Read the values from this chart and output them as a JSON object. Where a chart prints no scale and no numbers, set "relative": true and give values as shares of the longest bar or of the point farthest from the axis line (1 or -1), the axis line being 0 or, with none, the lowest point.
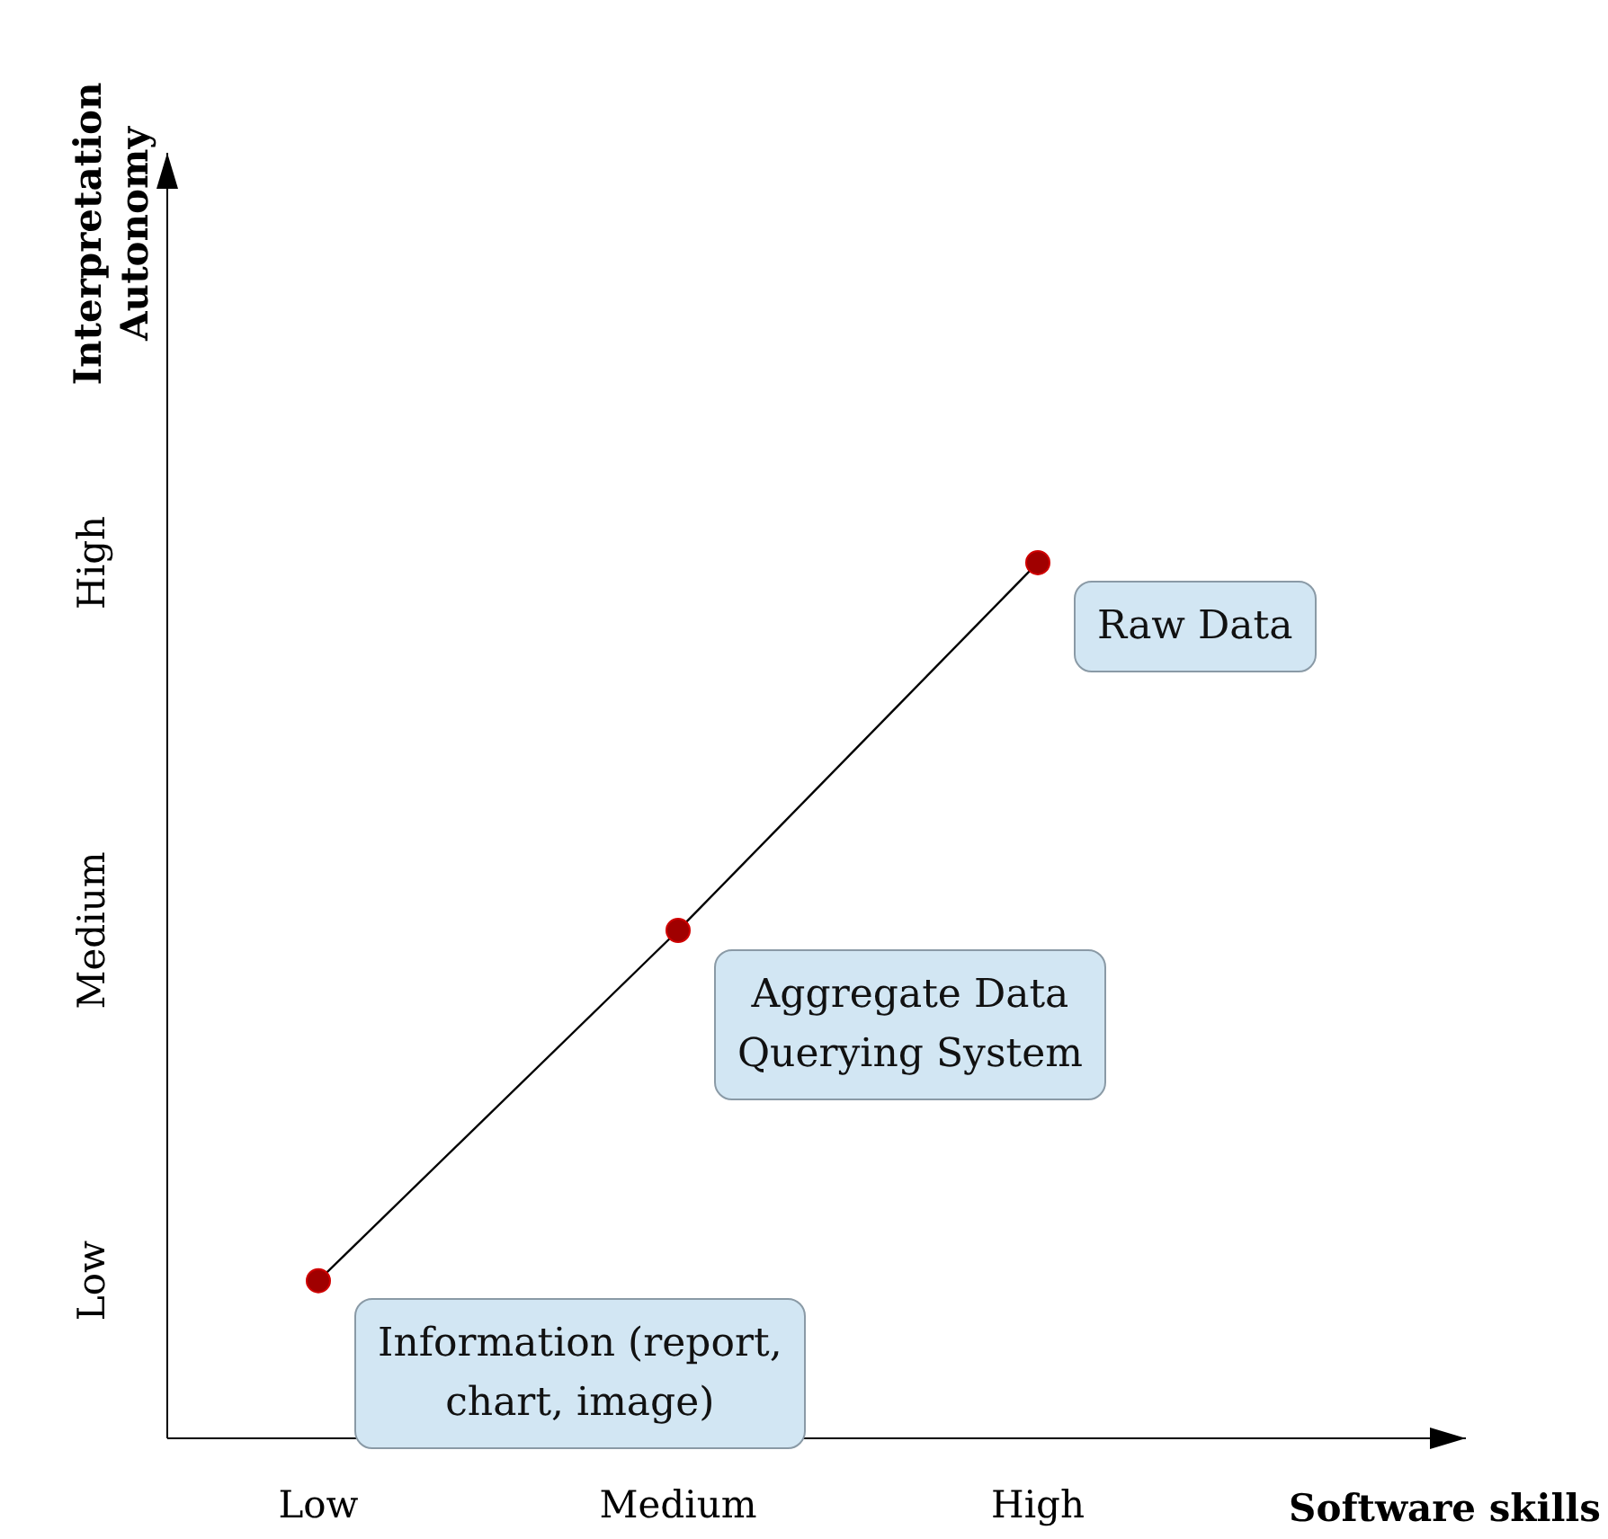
{
  "chart_data": {
    "type": "scatter",
    "xlabel": "Software skills",
    "ylabel": "Interpretation\nAutonomy",
    "categories": [
      "Low",
      "Medium",
      "High"
    ],
    "relative": true,
    "marker": "circle",
    "series": [
      {
        "type": "line",
        "color": "#000000",
        "values": [
          0.18,
          0.58,
          1
        ],
        "marker": "none"
      },
      {
        "color": "#a00000",
        "values": [
          0.18,
          0.58,
          1
        ]
      }
    ],
    "annotations": [
      {
        "text": "Information (report, chart, image)",
        "x": "Low",
        "y": 0.18
      },
      {
        "text": "Aggregate Data Querying System",
        "x": "Medium",
        "y": 0.58
      },
      {
        "text": "Raw Data",
        "x": "High",
        "y": 1
      },
      "Low",
      "Medium",
      "High"
    ]
  }
}
